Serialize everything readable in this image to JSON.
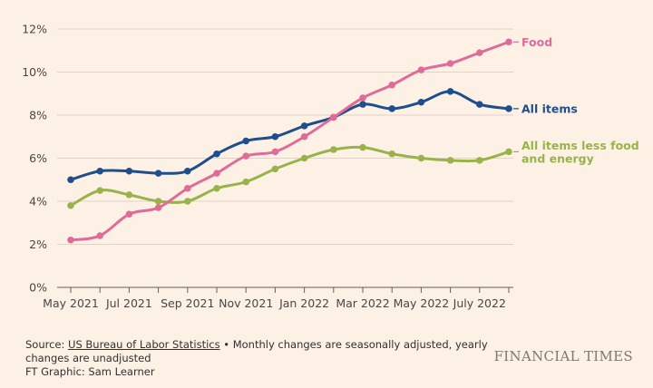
{
  "chart_data": {
    "type": "line",
    "title": "",
    "xlabel": "",
    "ylabel": "",
    "ylim": [
      0,
      12
    ],
    "y_ticks": [
      0,
      2,
      4,
      6,
      8,
      10,
      12
    ],
    "y_tick_suffix": "%",
    "months": [
      "May 2021",
      "Jun 2021",
      "Jul 2021",
      "Aug 2021",
      "Sep 2021",
      "Oct 2021",
      "Nov 2021",
      "Dec 2021",
      "Jan 2022",
      "Feb 2022",
      "Mar 2022",
      "Apr 2022",
      "May 2022",
      "Jun 2022",
      "July 2022",
      "Aug 2022"
    ],
    "x_tick_labels": [
      {
        "index": 0,
        "label": "May 2021"
      },
      {
        "index": 2,
        "label": "Jul 2021"
      },
      {
        "index": 4,
        "label": "Sep 2021"
      },
      {
        "index": 6,
        "label": "Nov 2021"
      },
      {
        "index": 8,
        "label": "Jan 2022"
      },
      {
        "index": 10,
        "label": "Mar 2022"
      },
      {
        "index": 12,
        "label": "May 2022"
      },
      {
        "index": 14,
        "label": "July 2022"
      }
    ],
    "series": [
      {
        "name": "Food",
        "label_lines": [
          "Food"
        ],
        "color": "#e06b98",
        "values": [
          2.2,
          2.4,
          3.4,
          3.7,
          4.6,
          5.3,
          6.1,
          6.3,
          7.0,
          7.9,
          8.8,
          9.4,
          10.1,
          10.4,
          10.9,
          11.4
        ]
      },
      {
        "name": "All items",
        "label_lines": [
          "All items"
        ],
        "color": "#1f4e8c",
        "values": [
          5.0,
          5.4,
          5.4,
          5.3,
          5.4,
          6.2,
          6.8,
          7.0,
          7.5,
          7.9,
          8.5,
          8.3,
          8.6,
          9.1,
          8.5,
          8.3
        ]
      },
      {
        "name": "All items less food and energy",
        "label_lines": [
          "All items less food",
          "and energy"
        ],
        "color": "#98b34a",
        "values": [
          3.8,
          4.5,
          4.3,
          4.0,
          4.0,
          4.6,
          4.9,
          5.5,
          6.0,
          6.4,
          6.5,
          6.2,
          6.0,
          5.9,
          5.9,
          6.3
        ]
      }
    ]
  },
  "footer": {
    "source_prefix": "Source: ",
    "source_name": "US Bureau of Labor Statistics",
    "note": " • Monthly changes are seasonally adjusted, yearly changes are unadjusted",
    "credit": "FT Graphic: Sam Learner"
  },
  "brand": "FINANCIAL TIMES",
  "colors": {
    "background": "#fdf1e6",
    "grid": "#e0d3c8",
    "axis": "#66605c"
  }
}
